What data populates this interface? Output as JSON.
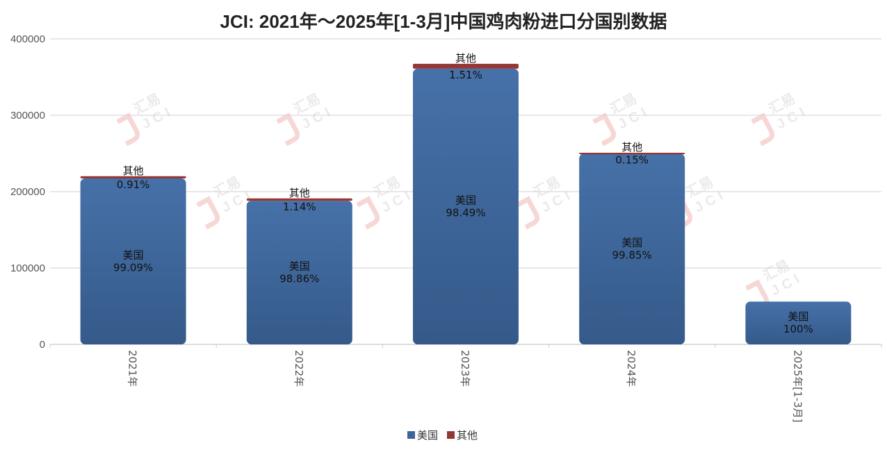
{
  "chart_data": {
    "type": "bar",
    "stacked": true,
    "title": "JCI: 2021年～2025年[1-3月]中国鸡肉粉进口分国别数据",
    "xlabel": "",
    "ylabel": "",
    "ylim": [
      0,
      400000
    ],
    "yticks": [
      "0",
      "100000",
      "200000",
      "300000",
      "400000"
    ],
    "grid": true,
    "legend_position": "bottom",
    "categories": [
      "2021年",
      "2022年",
      "2023年",
      "2024年",
      "2025年[1-3月]"
    ],
    "series": [
      {
        "name": "美国",
        "color": "#3d6497",
        "values": [
          217300,
          188000,
          361000,
          249600,
          56000
        ],
        "labels": [
          "99.09%",
          "98.86%",
          "98.49%",
          "99.85%",
          "100%"
        ]
      },
      {
        "name": "其他",
        "color": "#953735",
        "values": [
          2000,
          2200,
          5500,
          380,
          0
        ],
        "labels": [
          "0.91%",
          "1.14%",
          "1.51%",
          "0.15%",
          ""
        ]
      }
    ]
  },
  "watermark": {
    "brand": "汇易",
    "mark": "JCI",
    "color": "#f2b8b4"
  }
}
